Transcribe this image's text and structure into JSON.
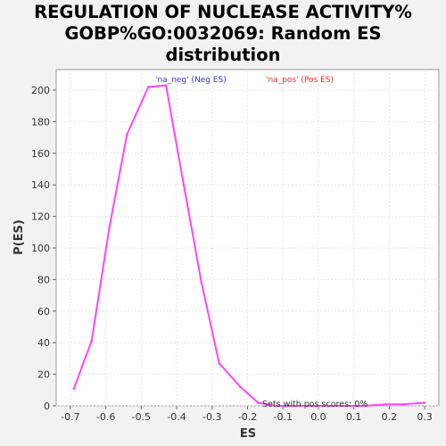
{
  "title_lines": [
    "REGULATION OF NUCLEASE ACTIVITY%",
    "GOBP%GO:0032069: Random ES",
    "distribution"
  ],
  "chart_data": {
    "type": "line",
    "xlabel": "ES",
    "ylabel": "P(ES)",
    "xlim": [
      -0.74,
      0.34
    ],
    "ylim": [
      0,
      213
    ],
    "x_ticks": [
      "-0.7",
      "-0.6",
      "-0.5",
      "-0.4",
      "-0.3",
      "-0.2",
      "-0.1",
      "0.0",
      "0.1",
      "0.2",
      "0.3"
    ],
    "y_ticks": [
      "0",
      "20",
      "40",
      "60",
      "80",
      "100",
      "120",
      "140",
      "160",
      "180",
      "200"
    ],
    "grid": true,
    "legend": [
      {
        "label": "'na_neg' (Neg ES)",
        "color": "#3333cc"
      },
      {
        "label": "'na_pos' (Pos ES)",
        "color": "#ee2222"
      }
    ],
    "annotation": "Sets with pos scores: 0%",
    "series": [
      {
        "color": "#ff44ff",
        "x": [
          -0.69,
          -0.64,
          -0.59,
          -0.54,
          -0.48,
          -0.43,
          -0.38,
          -0.33,
          -0.28,
          -0.22,
          -0.17,
          -0.12,
          -0.07,
          -0.02,
          0.03,
          0.08,
          0.13,
          0.19,
          0.24,
          0.3
        ],
        "y": [
          11,
          41,
          113,
          172,
          202,
          203,
          140,
          78,
          27,
          12,
          2,
          0,
          0,
          0,
          0,
          0,
          0,
          1,
          1,
          2
        ]
      }
    ]
  }
}
